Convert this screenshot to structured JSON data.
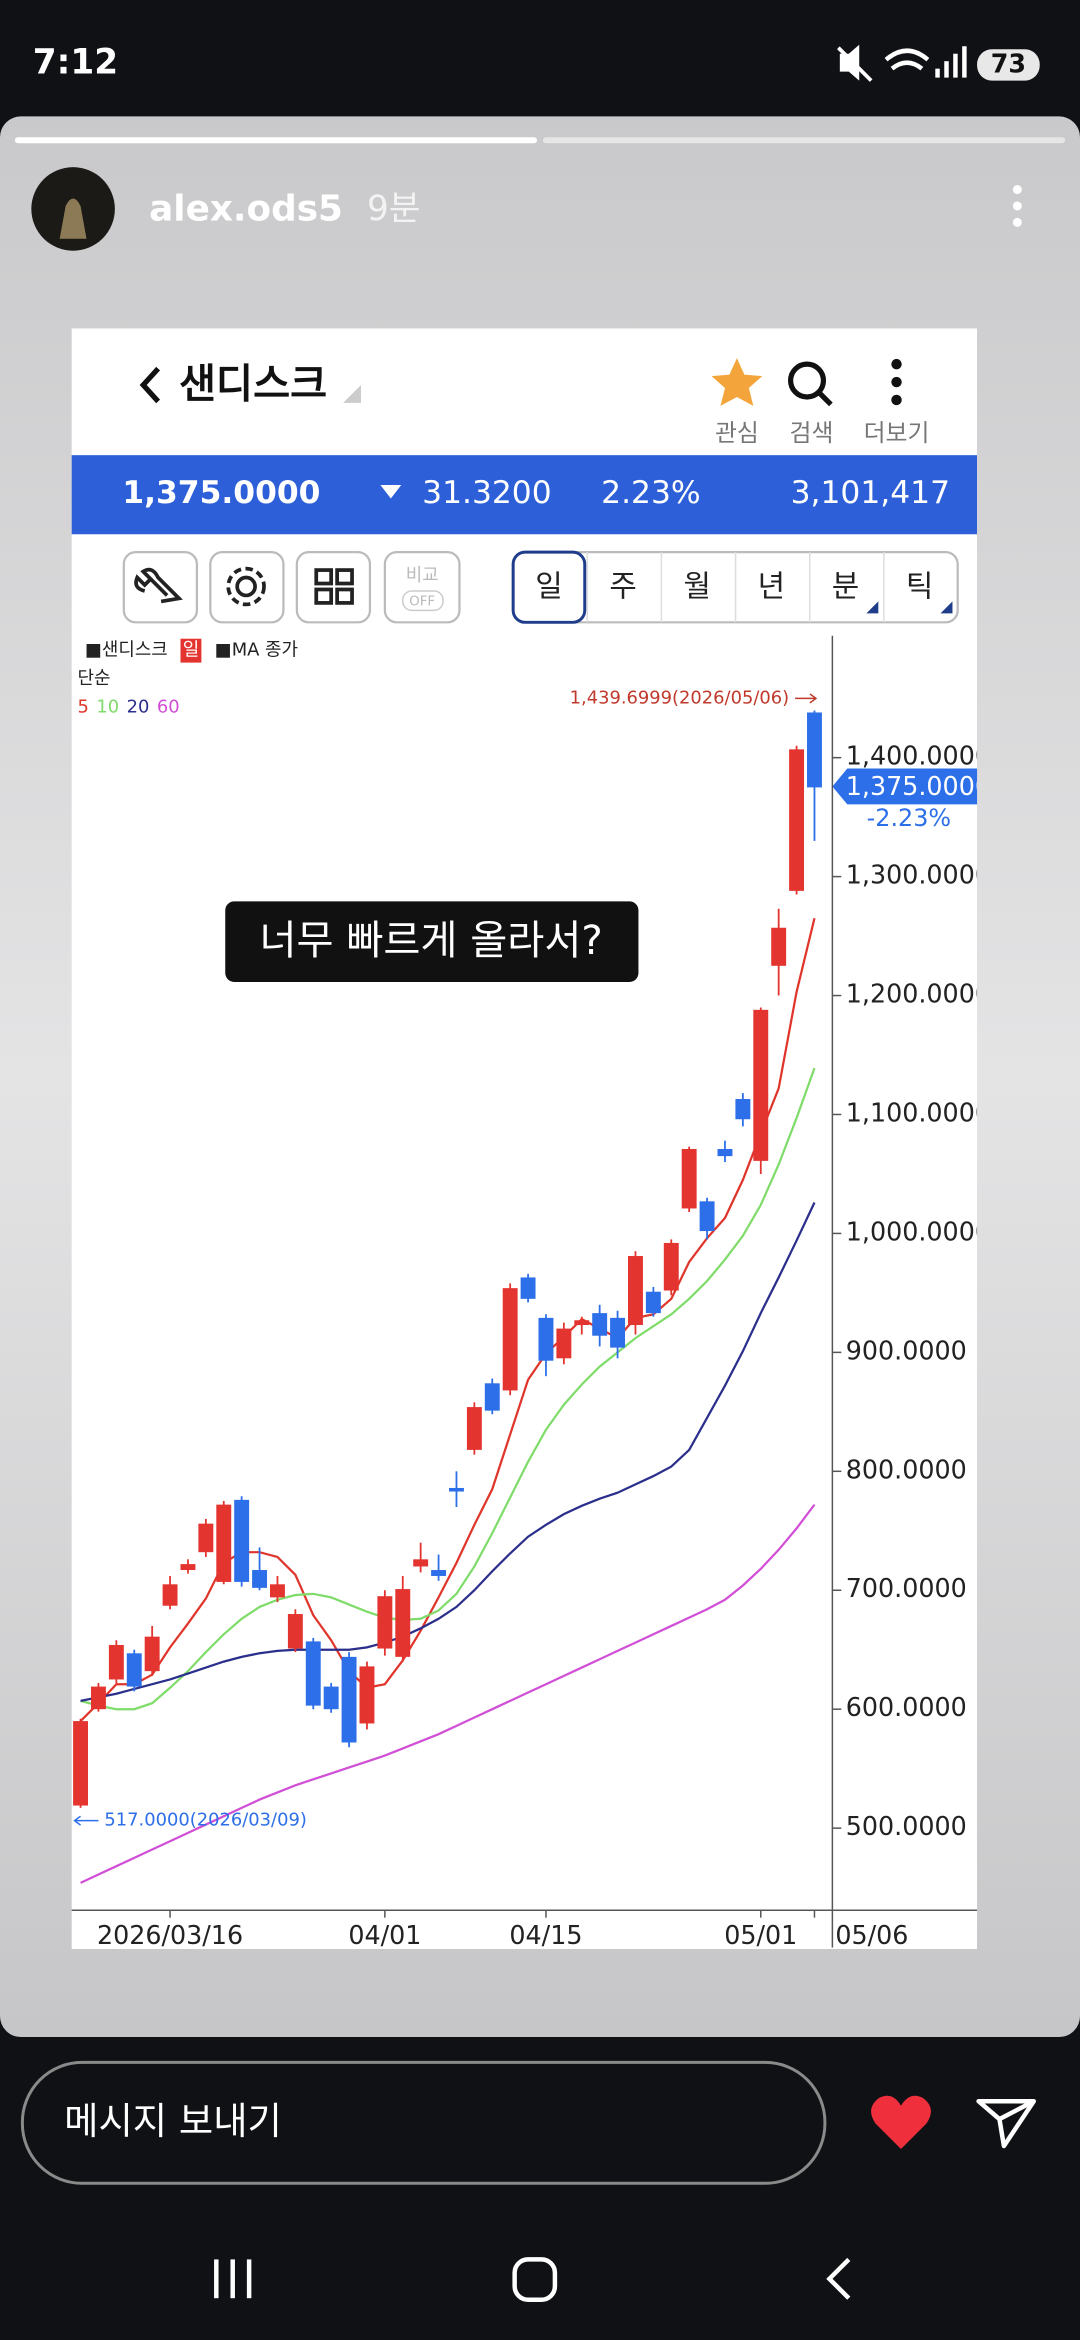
{
  "status_bar": {
    "time": "7:12",
    "battery": "73"
  },
  "story": {
    "username": "alex.ods5",
    "time_ago": "9분"
  },
  "app_header": {
    "title": "샌디스크",
    "actions": [
      "관심",
      "검색",
      "더보기"
    ]
  },
  "quote": {
    "price": "1,375.0000",
    "change": "31.3200",
    "change_pct": "2.23%",
    "volume": "3,101,417"
  },
  "toolbar": {
    "compare": "비교",
    "compare_state": "OFF",
    "periods": [
      "일",
      "주",
      "월",
      "년",
      "분",
      "틱"
    ]
  },
  "chart_data": {
    "type": "candlestick",
    "legend": {
      "symbol": "■샌디스크",
      "period": "일",
      "indicator": "■MA 종가",
      "ma_type": "단순"
    },
    "categories": [
      null,
      null,
      null,
      null,
      null,
      "2026/03/16",
      null,
      null,
      null,
      null,
      null,
      null,
      null,
      null,
      null,
      null,
      null,
      "04/01",
      null,
      null,
      null,
      null,
      null,
      null,
      null,
      null,
      "04/15",
      null,
      null,
      null,
      null,
      null,
      null,
      null,
      null,
      null,
      null,
      null,
      "05/01",
      null,
      null,
      "05/06"
    ],
    "series": [
      {
        "name": "샌디스크",
        "up_color": "#e3342f",
        "down_color": "#2d6fe8",
        "open": [
          519,
          600,
          625,
          647,
          632,
          687,
          717,
          732,
          707,
          776,
          717,
          694,
          651,
          657,
          619,
          644,
          588,
          651,
          644,
          720,
          717,
          786,
          818,
          874,
          868,
          963,
          929,
          895,
          923,
          933,
          929,
          923,
          951,
          952,
          1021,
          1027,
          1071,
          1113,
          1061,
          1225,
          1288,
          1438
        ],
        "high": [
          592,
          622,
          658,
          650,
          670,
          712,
          726,
          760,
          775,
          779,
          736,
          712,
          684,
          660,
          622,
          648,
          640,
          700,
          712,
          740,
          730,
          800,
          858,
          878,
          958,
          966,
          932,
          925,
          930,
          940,
          935,
          985,
          955,
          995,
          1073,
          1030,
          1078,
          1118,
          1190,
          1273,
          1410,
          1439.6999
        ],
        "low": [
          517,
          598,
          620,
          615,
          628,
          684,
          714,
          728,
          705,
          703,
          700,
          690,
          648,
          600,
          597,
          568,
          583,
          645,
          640,
          715,
          708,
          770,
          814,
          848,
          864,
          942,
          880,
          890,
          915,
          905,
          895,
          915,
          930,
          948,
          1018,
          995,
          1060,
          1090,
          1050,
          1200,
          1285,
          1330
        ],
        "close": [
          590,
          619,
          654,
          619,
          661,
          705,
          722,
          756,
          772,
          707,
          702,
          705,
          680,
          603,
          600,
          572,
          636,
          695,
          701,
          726,
          712,
          783,
          854,
          851,
          954,
          945,
          893,
          920,
          927,
          914,
          904,
          981,
          933,
          992,
          1071,
          1002,
          1065,
          1096,
          1188,
          1257,
          1407,
          1375
        ]
      }
    ],
    "ma": [
      {
        "name": "5",
        "color": "#e0352b",
        "values": [
          590,
          605,
          621,
          621,
          629,
          652,
          672,
          693,
          723,
          732,
          732,
          728,
          713,
          679,
          658,
          632,
          618,
          621,
          641,
          666,
          694,
          723,
          755,
          785,
          831,
          877,
          899,
          913,
          928,
          920,
          912,
          929,
          932,
          945,
          976,
          996,
          1013,
          1045,
          1084,
          1122,
          1203,
          1265
        ]
      },
      {
        "name": "10",
        "color": "#7fdc6a",
        "values": [
          607,
          603,
          600,
          600,
          605,
          618,
          632,
          648,
          663,
          676,
          686,
          692,
          696,
          697,
          694,
          688,
          682,
          677,
          675,
          676,
          683,
          697,
          720,
          748,
          778,
          808,
          835,
          856,
          873,
          888,
          900,
          912,
          922,
          932,
          945,
          960,
          978,
          998,
          1024,
          1058,
          1097,
          1139
        ]
      },
      {
        "name": "20",
        "color": "#2b2f8c",
        "values": [
          607,
          610,
          613,
          617,
          621,
          625,
          630,
          635,
          640,
          644,
          647,
          649,
          650,
          650,
          650,
          650,
          652,
          656,
          661,
          668,
          676,
          686,
          700,
          716,
          731,
          745,
          755,
          764,
          771,
          777,
          782,
          789,
          796,
          804,
          818,
          845,
          872,
          901,
          933,
          963,
          994,
          1026
        ]
      },
      {
        "name": "60",
        "color": "#d14fd6",
        "values": [
          454,
          461,
          468,
          475,
          482,
          489,
          496,
          503,
          510,
          517,
          524,
          530,
          536,
          541,
          546,
          551,
          556,
          561,
          567,
          573,
          579,
          586,
          593,
          600,
          607,
          614,
          621,
          628,
          635,
          642,
          649,
          656,
          663,
          670,
          677,
          684,
          692,
          704,
          718,
          734,
          752,
          772
        ]
      }
    ],
    "ylim": [
      431,
      1500
    ],
    "yticks": [
      {
        "value": 500,
        "label": "500.0000"
      },
      {
        "value": 600,
        "label": "600.0000"
      },
      {
        "value": 700,
        "label": "700.0000"
      },
      {
        "value": 800,
        "label": "800.0000"
      },
      {
        "value": 900,
        "label": "900.0000"
      },
      {
        "value": 1000,
        "label": "1,000.0000"
      },
      {
        "value": 1100,
        "label": "1,100.0000"
      },
      {
        "value": 1200,
        "label": "1,200.0000"
      },
      {
        "value": 1300,
        "label": "1,300.0000"
      },
      {
        "value": 1400,
        "label": "1,400.0000"
      }
    ],
    "annotations": {
      "high_label": "1,439.6999(2026/05/06)",
      "low_label": "517.0000(2026/03/09)",
      "last_price": "1,375.0000",
      "last_change": "-2.23%"
    }
  },
  "overlay_text": "너무 빠르게 올라서?",
  "message_input": {
    "placeholder": "메시지 보내기"
  }
}
